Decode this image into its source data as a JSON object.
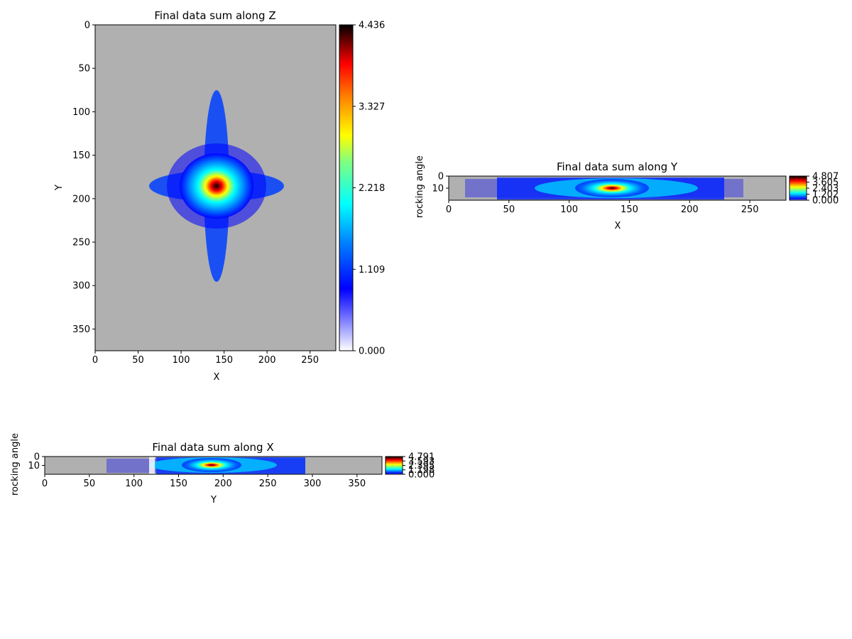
{
  "chart_data": [
    {
      "type": "heatmap",
      "title": "Final data sum along Z",
      "xlabel": "X",
      "ylabel": "Y",
      "xlim": [
        0,
        280
      ],
      "ylim": [
        375,
        0
      ],
      "x_ticks": [
        0,
        50,
        100,
        150,
        200,
        250
      ],
      "y_ticks": [
        0,
        50,
        100,
        150,
        200,
        250,
        300,
        350
      ],
      "colormap": "jet-like (white to blue to cyan to yellow to red to black)",
      "background_color": "#b0b0b0",
      "colorbar": {
        "min": 0.0,
        "max": 4.436,
        "ticks": [
          "0.000",
          "1.109",
          "2.218",
          "3.327",
          "4.436"
        ]
      },
      "peak": {
        "x": 140,
        "y": 188
      },
      "shape": "cross-shaped streaks along X and Y through the peak"
    },
    {
      "type": "heatmap",
      "title": "Final data sum along Y",
      "xlabel": "X",
      "ylabel": "rocking angle",
      "xlim": [
        0,
        280
      ],
      "ylim": [
        20,
        0
      ],
      "x_ticks": [
        0,
        50,
        100,
        150,
        200,
        250
      ],
      "y_ticks": [
        0,
        10
      ],
      "colormap": "jet",
      "background_color": "#b0b0b0",
      "colorbar": {
        "min": 0.0,
        "max": 4.807,
        "ticks": [
          "0.000",
          "1.202",
          "2.403",
          "3.605",
          "4.807"
        ]
      },
      "peak": {
        "x": 140,
        "y": 10
      }
    },
    {
      "type": "heatmap",
      "title": "Final data sum along X",
      "xlabel": "Y",
      "ylabel": "rocking angle",
      "xlim": [
        0,
        378
      ],
      "ylim": [
        20,
        0
      ],
      "x_ticks": [
        0,
        50,
        100,
        150,
        200,
        250,
        300,
        350
      ],
      "y_ticks": [
        0,
        10
      ],
      "colormap": "jet",
      "background_color": "#b0b0b0",
      "colorbar": {
        "min": 0.0,
        "max": 4.791,
        "ticks": [
          "0.000",
          "1.198",
          "2.395",
          "3.593",
          "4.791"
        ]
      },
      "peak": {
        "x": 188,
        "y": 10
      }
    }
  ]
}
